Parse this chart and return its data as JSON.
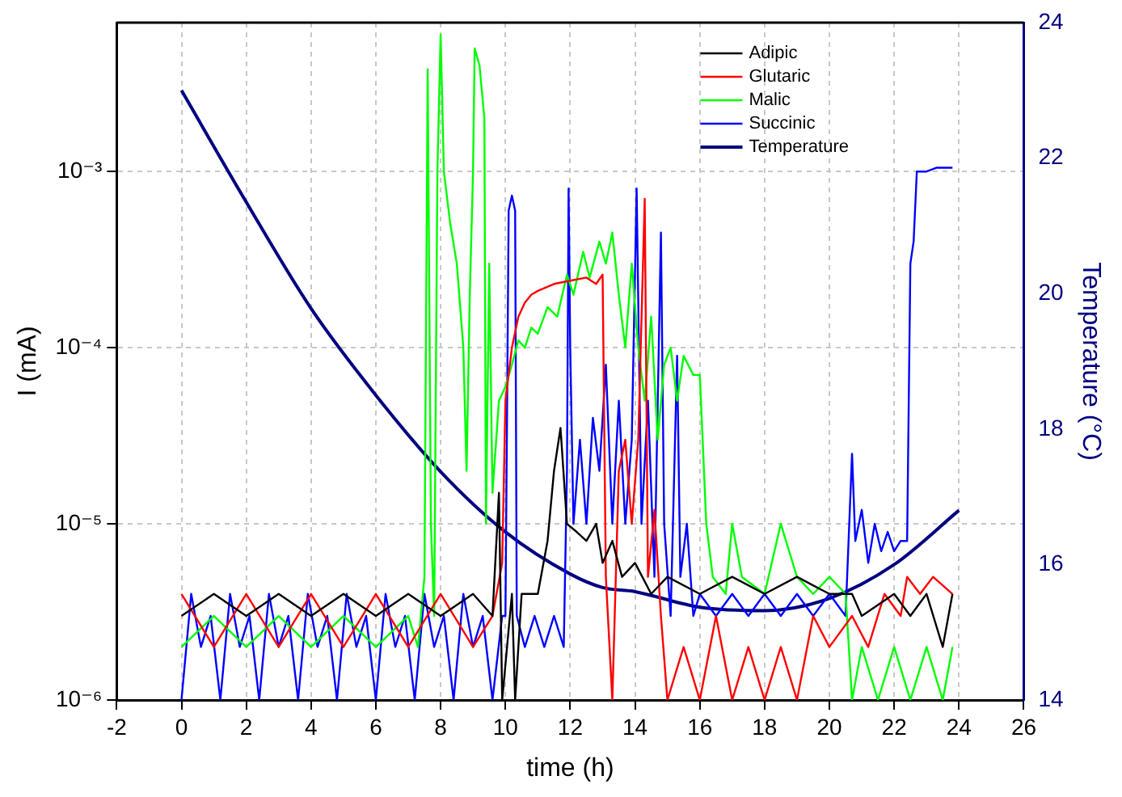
{
  "chart_data": {
    "type": "line",
    "xlabel": "time (h)",
    "ylabel": "I (mA)",
    "y2label": "Temperature (°C)",
    "xlim": [
      -2,
      26
    ],
    "xticks": [
      -2,
      0,
      2,
      4,
      6,
      8,
      10,
      12,
      14,
      16,
      18,
      20,
      22,
      24,
      26
    ],
    "ylim": [
      1e-06,
      0.007
    ],
    "yticks": [
      {
        "value": 1e-06,
        "label": "10⁻⁶"
      },
      {
        "value": 1e-05,
        "label": "10⁻⁵"
      },
      {
        "value": 0.0001,
        "label": "10⁻⁴"
      },
      {
        "value": 0.001,
        "label": "10⁻³"
      }
    ],
    "y2lim": [
      14,
      24
    ],
    "y2ticks": [
      14,
      16,
      18,
      20,
      22,
      24
    ],
    "log": "y",
    "grid": true,
    "legend": "top right",
    "marker": "none",
    "line_style": "solid",
    "series": [
      {
        "name": "Adipic",
        "color": "#000000",
        "x": [
          0,
          1,
          2,
          3,
          4,
          5,
          6,
          7,
          8,
          9,
          9.6,
          9.8,
          9.9,
          10.2,
          10.3,
          10.5,
          11,
          11.3,
          11.5,
          11.7,
          11.9,
          12.2,
          12.5,
          12.8,
          13,
          13.3,
          13.6,
          14,
          14.5,
          15,
          16,
          17,
          18,
          19,
          20,
          20.7,
          21,
          22,
          22.5,
          23,
          23.5,
          23.8
        ],
        "values": [
          3e-06,
          4e-06,
          3e-06,
          4e-06,
          3e-06,
          4e-06,
          3e-06,
          4e-06,
          3e-06,
          4e-06,
          3e-06,
          1.5e-05,
          1e-06,
          4e-06,
          1e-06,
          4e-06,
          4e-06,
          8e-06,
          2e-05,
          3.5e-05,
          1e-05,
          9e-06,
          8e-06,
          1e-05,
          6e-06,
          8e-06,
          5e-06,
          6e-06,
          4e-06,
          5e-06,
          4e-06,
          5e-06,
          4e-06,
          5e-06,
          4e-06,
          4e-06,
          3e-06,
          4e-06,
          3e-06,
          4e-06,
          2e-06,
          4e-06
        ]
      },
      {
        "name": "Glutaric",
        "color": "#ff0000",
        "x": [
          0,
          1,
          2,
          3,
          4,
          5,
          6,
          7,
          8,
          9,
          9.6,
          9.9,
          10,
          10.2,
          10.4,
          10.6,
          10.8,
          11,
          11.5,
          12,
          12.5,
          12.8,
          13,
          13.1,
          13.3,
          13.5,
          13.7,
          13.9,
          14.1,
          14.3,
          14.4,
          14.6,
          14.8,
          15,
          15.5,
          16,
          16.5,
          17,
          17.5,
          18,
          18.5,
          19,
          19.5,
          20,
          20.7,
          21.2,
          21.7,
          22.2,
          22.4,
          22.8,
          23.2,
          23.8
        ],
        "values": [
          4e-06,
          2e-06,
          4e-06,
          2e-06,
          4e-06,
          2e-06,
          4e-06,
          2e-06,
          4e-06,
          2e-06,
          3e-06,
          6e-06,
          5e-05,
          0.0001,
          0.00015,
          0.00018,
          0.0002,
          0.00021,
          0.00023,
          0.00024,
          0.00025,
          0.00023,
          0.00026,
          5e-06,
          1e-06,
          2e-05,
          3e-05,
          1e-05,
          3e-05,
          0.0007,
          5e-06,
          1.2e-05,
          3e-06,
          1e-06,
          2e-06,
          1e-06,
          3e-06,
          1e-06,
          2e-06,
          1e-06,
          2e-06,
          1e-06,
          3e-06,
          2e-06,
          3e-06,
          2e-06,
          4e-06,
          3e-06,
          5e-06,
          4e-06,
          5e-06,
          4e-06
        ]
      },
      {
        "name": "Malic",
        "color": "#00ff00",
        "x": [
          0,
          1,
          2,
          3,
          4,
          5,
          6,
          7,
          7.3,
          7.5,
          7.6,
          7.7,
          7.8,
          7.9,
          8,
          8.1,
          8.3,
          8.5,
          8.7,
          8.8,
          8.9,
          9,
          9.05,
          9.2,
          9.35,
          9.4,
          9.5,
          9.6,
          9.8,
          10,
          10.2,
          10.4,
          10.6,
          10.8,
          11,
          11.3,
          11.6,
          11.9,
          12.1,
          12.4,
          12.6,
          12.9,
          13.1,
          13.3,
          13.5,
          13.7,
          13.9,
          14.1,
          14.3,
          14.5,
          14.7,
          14.9,
          15.1,
          15.3,
          15.5,
          15.8,
          16,
          16.2,
          16.4,
          16.8,
          17,
          17.3,
          18,
          18.5,
          19,
          19.5,
          20,
          20.5,
          20.7,
          21,
          21.5,
          22,
          22.5,
          23,
          23.5,
          23.8
        ],
        "values": [
          2e-06,
          3e-06,
          2e-06,
          3e-06,
          2e-06,
          3e-06,
          2e-06,
          3e-06,
          2e-06,
          5e-06,
          0.0038,
          1e-05,
          3e-06,
          0.001,
          0.006,
          0.001,
          0.0005,
          0.0003,
          0.0001,
          2e-05,
          0.0002,
          0.001,
          0.005,
          0.004,
          0.002,
          1e-05,
          0.0003,
          1.5e-05,
          5e-05,
          6e-05,
          8e-05,
          0.00011,
          0.0001,
          0.00013,
          0.00012,
          0.00017,
          0.00015,
          0.00026,
          0.0002,
          0.00035,
          0.00025,
          0.0004,
          0.0003,
          0.00045,
          0.0002,
          0.0001,
          0.0003,
          0.0001,
          5e-05,
          0.00015,
          3e-05,
          8e-05,
          0.0001,
          5e-05,
          9e-05,
          7e-05,
          7e-05,
          1e-05,
          5e-06,
          4e-06,
          1e-05,
          5e-06,
          4e-06,
          1e-05,
          5e-06,
          4e-06,
          5e-06,
          4e-06,
          1e-06,
          2e-06,
          1e-06,
          2e-06,
          1e-06,
          2e-06,
          1e-06,
          2e-06
        ]
      },
      {
        "name": "Succinic",
        "color": "#0000ff",
        "x": [
          0,
          0.3,
          0.6,
          0.9,
          1.2,
          1.5,
          1.8,
          2.1,
          2.4,
          2.7,
          3,
          3.3,
          3.6,
          3.9,
          4.2,
          4.5,
          4.8,
          5.1,
          5.4,
          5.7,
          6,
          6.3,
          6.6,
          6.9,
          7.2,
          7.5,
          7.8,
          8.1,
          8.4,
          8.7,
          9,
          9.3,
          9.6,
          9.9,
          10,
          10.1,
          10.2,
          10.3,
          10.35,
          10.6,
          10.9,
          11.2,
          11.5,
          11.8,
          11.9,
          11.95,
          12,
          12.1,
          12.3,
          12.5,
          12.7,
          12.9,
          13.1,
          13.3,
          13.5,
          13.7,
          13.9,
          14.05,
          14.2,
          14.4,
          14.6,
          14.8,
          14.9,
          15.1,
          15.3,
          15.4,
          15.6,
          15.8,
          16,
          16.5,
          17,
          17.5,
          18,
          18.5,
          19,
          19.5,
          20,
          20.5,
          20.7,
          20.8,
          21,
          21.2,
          21.4,
          21.6,
          21.8,
          22,
          22.2,
          22.4,
          22.5,
          22.6,
          22.7,
          23,
          23.3,
          23.6,
          23.8
        ],
        "values": [
          1e-06,
          4e-06,
          2e-06,
          3e-06,
          1e-06,
          4e-06,
          2e-06,
          3e-06,
          1e-06,
          4e-06,
          2e-06,
          3e-06,
          1e-06,
          4e-06,
          2e-06,
          3e-06,
          1e-06,
          4e-06,
          2e-06,
          3e-06,
          1e-06,
          4e-06,
          2e-06,
          3e-06,
          1e-06,
          4e-06,
          2e-06,
          3e-06,
          1e-06,
          4e-06,
          2e-06,
          3e-06,
          1e-06,
          3e-06,
          3e-06,
          0.0006,
          0.00073,
          0.0006,
          3e-06,
          2e-06,
          3e-06,
          2e-06,
          3e-06,
          2e-06,
          2e-05,
          0.0008,
          0.0001,
          1e-05,
          3e-05,
          1e-05,
          4e-05,
          2e-05,
          8e-05,
          1e-05,
          5e-05,
          1e-05,
          3e-05,
          0.0008,
          1e-05,
          5e-05,
          5e-06,
          0.00045,
          1e-05,
          3e-06,
          9e-05,
          5e-06,
          1e-05,
          3e-06,
          4e-06,
          3e-06,
          4e-06,
          3e-06,
          4e-06,
          3e-06,
          4e-06,
          3e-06,
          4e-06,
          3e-06,
          2.5e-05,
          8e-06,
          1.2e-05,
          6e-06,
          1e-05,
          7e-06,
          9e-06,
          7e-06,
          8e-06,
          8e-06,
          0.0003,
          0.0004,
          0.001,
          0.001,
          0.00105,
          0.00105,
          0.00105
        ]
      },
      {
        "name": "Temperature",
        "color": "#000080",
        "axis": "y2",
        "x": [
          0,
          2,
          4,
          6,
          8,
          10,
          12,
          13,
          14,
          16,
          18,
          20,
          22,
          24
        ],
        "values": [
          23.0,
          21.35,
          19.78,
          18.5,
          17.37,
          16.48,
          15.86,
          15.66,
          15.6,
          15.37,
          15.32,
          15.5,
          16.0,
          16.8
        ]
      }
    ]
  }
}
